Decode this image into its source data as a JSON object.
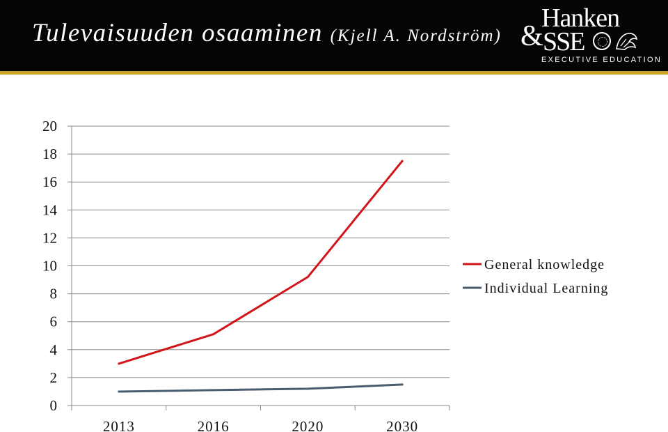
{
  "header": {
    "title": "Tulevaisuuden osaaminen",
    "subtitle": "(Kjell A. Nordström)",
    "logo_line1": "Hanken",
    "logo_amp": "&",
    "logo_line2": "SSE",
    "logo_line3": "EXECUTIVE EDUCATION",
    "logo_icons": [
      "seal-icon",
      "crest-icon"
    ]
  },
  "chart_data": {
    "type": "line",
    "categories": [
      "2013",
      "2016",
      "2020",
      "2030"
    ],
    "series": [
      {
        "name": "General knowledge",
        "values": [
          3.0,
          5.1,
          9.2,
          17.5
        ],
        "color": "#d0161b"
      },
      {
        "name": "Individual Learning",
        "values": [
          1.0,
          1.1,
          1.2,
          1.5
        ],
        "color": "#4a5d6e"
      }
    ],
    "yticks": [
      0,
      2,
      4,
      6,
      8,
      10,
      12,
      14,
      16,
      18,
      20
    ],
    "ylim": [
      0,
      20
    ],
    "grid": true,
    "legend_position": "right",
    "title": "",
    "xlabel": "",
    "ylabel": ""
  }
}
